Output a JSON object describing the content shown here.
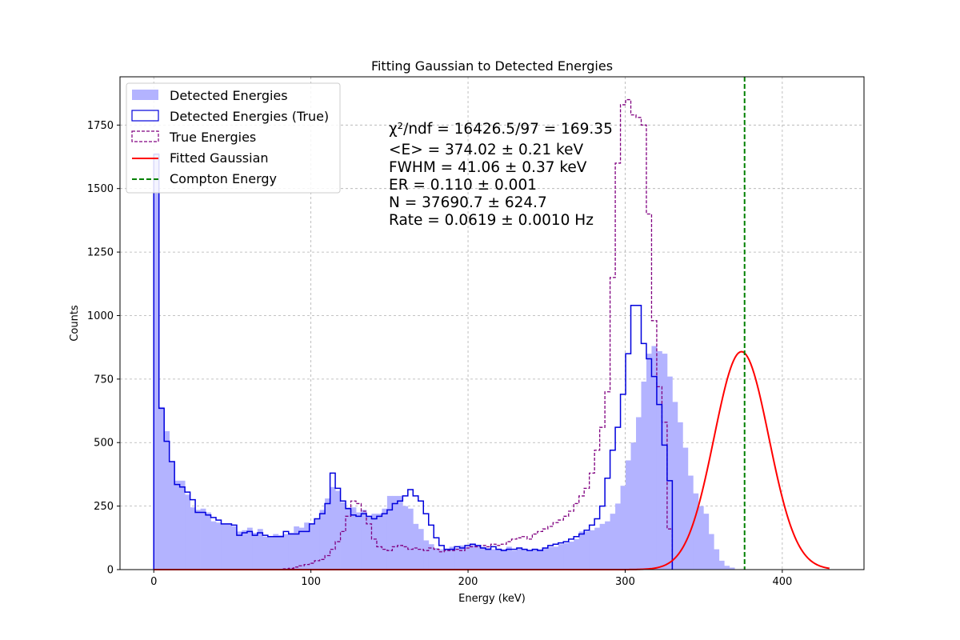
{
  "chart_data": {
    "type": "histogram",
    "title": "Fitting Gaussian to Detected Energies",
    "xlabel": "Energy (keV)",
    "ylabel": "Counts",
    "xlim": [
      -21.5,
      452
    ],
    "ylim": [
      0,
      1940
    ],
    "xticks": [
      0,
      100,
      200,
      300,
      400
    ],
    "yticks": [
      0,
      250,
      500,
      750,
      1000,
      1250,
      1500,
      1750
    ],
    "grid": true,
    "legend_position": "top-left",
    "bin_width": 3.3,
    "bin_start": 0,
    "series": [
      {
        "name": "Detected Energies",
        "style": "filled-bars",
        "color": "#b3b3ff",
        "counts": [
          1640,
          640,
          545,
          425,
          350,
          350,
          295,
          245,
          235,
          240,
          225,
          190,
          185,
          180,
          180,
          170,
          150,
          155,
          165,
          145,
          160,
          130,
          130,
          140,
          135,
          140,
          145,
          170,
          165,
          185,
          180,
          200,
          235,
          280,
          325,
          310,
          265,
          245,
          245,
          225,
          235,
          210,
          220,
          220,
          240,
          290,
          290,
          290,
          250,
          240,
          180,
          160,
          115,
          100,
          85,
          80,
          80,
          90,
          85,
          95,
          90,
          100,
          95,
          90,
          85,
          80,
          80,
          80,
          90,
          75,
          85,
          80,
          75,
          80,
          80,
          85,
          90,
          90,
          100,
          105,
          110,
          120,
          150,
          150,
          155,
          165,
          180,
          190,
          220,
          260,
          330,
          430,
          500,
          600,
          740,
          850,
          880,
          860,
          850,
          760,
          660,
          580,
          480,
          370,
          300,
          250,
          220,
          140,
          80,
          35,
          15,
          8
        ]
      },
      {
        "name": "Detected Energies (True)",
        "style": "step",
        "color": "#0000dd",
        "range": [
          0,
          399
        ],
        "counts": [
          1635,
          635,
          505,
          425,
          335,
          325,
          305,
          275,
          225,
          225,
          215,
          205,
          195,
          180,
          180,
          175,
          135,
          145,
          150,
          135,
          145,
          135,
          130,
          130,
          130,
          150,
          140,
          140,
          150,
          150,
          180,
          200,
          220,
          260,
          380,
          320,
          270,
          240,
          215,
          210,
          220,
          210,
          200,
          210,
          220,
          235,
          260,
          270,
          290,
          315,
          290,
          270,
          220,
          175,
          125,
          95,
          80,
          80,
          90,
          85,
          95,
          100,
          95,
          85,
          80,
          90,
          80,
          75,
          80,
          80,
          85,
          80,
          75,
          80,
          75,
          85,
          95,
          100,
          105,
          110,
          120,
          130,
          140,
          155,
          175,
          200,
          250,
          360,
          470,
          560,
          690,
          850,
          1040,
          1040,
          890,
          830,
          760,
          650,
          490,
          350
        ]
      },
      {
        "name": "True Energies",
        "style": "dashed-step",
        "color": "#800080",
        "range": [
          0,
          399
        ],
        "counts": [
          0,
          0,
          0,
          0,
          0,
          0,
          0,
          0,
          0,
          0,
          0,
          0,
          0,
          0,
          0,
          0,
          0,
          0,
          0,
          0,
          0,
          0,
          0,
          0,
          0,
          3,
          5,
          10,
          15,
          20,
          25,
          35,
          40,
          55,
          80,
          110,
          150,
          210,
          270,
          260,
          230,
          180,
          120,
          90,
          80,
          75,
          90,
          95,
          90,
          80,
          85,
          80,
          75,
          85,
          80,
          70,
          75,
          75,
          80,
          75,
          85,
          90,
          90,
          95,
          90,
          100,
          95,
          100,
          110,
          120,
          125,
          130,
          120,
          140,
          150,
          160,
          170,
          185,
          195,
          210,
          230,
          260,
          290,
          320,
          380,
          470,
          560,
          700,
          1150,
          1600,
          1830,
          1850,
          1790,
          1780,
          1750,
          1400,
          980,
          720,
          580,
          160
        ]
      },
      {
        "name": "Fitted Gaussian",
        "style": "line",
        "color": "#ff0000",
        "gaussian": {
          "amplitude": 858,
          "mean": 374.02,
          "sigma": 17.44,
          "x_range": [
            0,
            430
          ]
        }
      },
      {
        "name": "Compton Energy",
        "style": "dashed-vline",
        "color": "#008000",
        "x": 376
      }
    ],
    "annotation": {
      "lines": [
        "χ²/ndf = 16426.5/97 = 169.35",
        "<E> = 374.02 ± 0.21 keV",
        "FWHM = 41.06 ± 0.37 keV",
        "ER = 0.110 ± 0.001",
        "N = 37690.7 ± 624.7",
        "Rate = 0.0619 ± 0.0010 Hz"
      ]
    }
  }
}
